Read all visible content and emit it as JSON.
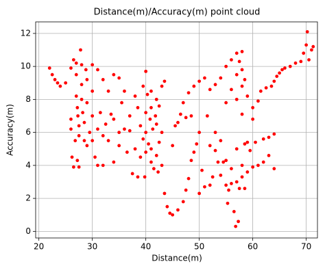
{
  "chart_data": {
    "type": "scatter",
    "title": "Distance(m)/Accuracy(m) point cloud",
    "x_label": "Distance(m)",
    "y_label": "Accuracy(m)",
    "color": "#ff0000",
    "grid": true,
    "xlim": [
      19.4,
      72.1
    ],
    "ylim": [
      -0.4,
      12.7
    ],
    "xticks": [
      20,
      30,
      40,
      50,
      60,
      70
    ],
    "yticks": [
      0,
      2,
      4,
      6,
      8,
      10,
      12
    ],
    "x": [
      22,
      22.5,
      23,
      23.5,
      24,
      25,
      26,
      26,
      26,
      26.2,
      26.5,
      26.8,
      26.5,
      27,
      27,
      27,
      27.2,
      27.3,
      27.5,
      27.5,
      27.2,
      27.5,
      27.8,
      28,
      28,
      28,
      28.2,
      28.5,
      28.5,
      28.8,
      29,
      29,
      29,
      29.5,
      30,
      30,
      30,
      30,
      30.5,
      31,
      31,
      31,
      31.5,
      32,
      32,
      32,
      32.5,
      33,
      33,
      33.5,
      34,
      34,
      34,
      35,
      35,
      35,
      35.5,
      36,
      36,
      36.5,
      37,
      37,
      37.5,
      38,
      38,
      38.5,
      38.5,
      39,
      39,
      39.5,
      39.5,
      39.8,
      40,
      40,
      40,
      40,
      40.3,
      40.5,
      40.8,
      41,
      41,
      41,
      41,
      41.3,
      41.5,
      41.8,
      42,
      42,
      42,
      42.3,
      42.5,
      42.5,
      43,
      43,
      43,
      43.5,
      43.5,
      44,
      44.5,
      45,
      45,
      45.5,
      46,
      46,
      46.5,
      47,
      47,
      47.5,
      47.5,
      48,
      48,
      48.5,
      48.5,
      49,
      49,
      49.5,
      50,
      50,
      50,
      50.5,
      51,
      51,
      51.5,
      52,
      52,
      52,
      52.5,
      53,
      53,
      53,
      53.5,
      54,
      54,
      54,
      54.5,
      55,
      55,
      55,
      55,
      55.3,
      55.5,
      56,
      56,
      56,
      56,
      56.5,
      56.8,
      57,
      57,
      57,
      57,
      57,
      57.3,
      57.5,
      57.5,
      58,
      58,
      58,
      58,
      58,
      58,
      58.5,
      58.5,
      58.5,
      59,
      59,
      59,
      59.5,
      60,
      60,
      60,
      60.5,
      61,
      61,
      61.5,
      62,
      62,
      62.5,
      63,
      63,
      63.5,
      64,
      64,
      64,
      64.5,
      65,
      65.5,
      66,
      67,
      68,
      69,
      69.5,
      70,
      70.2,
      70.5,
      71,
      71.3
    ],
    "values": [
      9.9,
      9.5,
      9.2,
      9.0,
      8.8,
      9.0,
      9.9,
      6.8,
      6.2,
      4.5,
      3.9,
      5.5,
      10.4,
      10.2,
      9.5,
      8.2,
      7.5,
      7.0,
      6.4,
      5.8,
      4.3,
      3.9,
      11.0,
      10.1,
      8.9,
      8.0,
      7.2,
      6.6,
      5.5,
      9.8,
      9.2,
      7.8,
      5.2,
      6.0,
      10.1,
      8.5,
      7.0,
      5.5,
      4.5,
      9.8,
      6.2,
      4.0,
      7.2,
      9.2,
      5.8,
      4.0,
      6.5,
      8.5,
      5.5,
      7.1,
      9.5,
      6.8,
      4.2,
      9.3,
      6.0,
      5.2,
      7.8,
      8.5,
      6.2,
      4.8,
      7.0,
      6.1,
      3.5,
      8.2,
      5.0,
      7.5,
      3.3,
      6.4,
      4.5,
      8.8,
      5.6,
      3.3,
      9.7,
      7.2,
      6.0,
      4.8,
      8.3,
      5.3,
      6.8,
      8.5,
      7.5,
      5.0,
      4.2,
      6.2,
      3.8,
      7.0,
      8.0,
      6.5,
      4.6,
      3.6,
      7.6,
      5.4,
      8.8,
      6.0,
      4.0,
      9.1,
      2.3,
      1.5,
      1.1,
      1.0,
      5.2,
      6.4,
      1.3,
      6.6,
      7.1,
      1.8,
      7.8,
      2.5,
      6.9,
      3.2,
      8.4,
      4.3,
      7.0,
      8.8,
      4.8,
      5.3,
      9.1,
      6.0,
      2.3,
      3.7,
      9.3,
      2.7,
      7.0,
      8.6,
      5.2,
      2.8,
      3.3,
      8.9,
      6.0,
      4.9,
      4.2,
      9.3,
      5.5,
      3.4,
      4.2,
      10.0,
      7.8,
      4.3,
      2.8,
      1.7,
      2.5,
      10.4,
      8.6,
      3.8,
      2.9,
      1.2,
      0.3,
      10.8,
      9.5,
      8.0,
      5.0,
      3.0,
      0.6,
      10.3,
      2.6,
      10.9,
      9.8,
      8.8,
      7.1,
      4.0,
      3.3,
      9.2,
      5.3,
      2.6,
      8.2,
      5.4,
      3.6,
      4.9,
      7.5,
      6.8,
      3.9,
      5.4,
      7.9,
      4.0,
      8.5,
      5.6,
      4.2,
      8.7,
      5.7,
      4.6,
      8.8,
      9.1,
      5.9,
      3.8,
      9.4,
      9.6,
      9.8,
      9.9,
      10.0,
      10.2,
      10.3,
      10.8,
      11.3,
      12.1,
      10.4,
      11.0,
      11.2
    ]
  }
}
